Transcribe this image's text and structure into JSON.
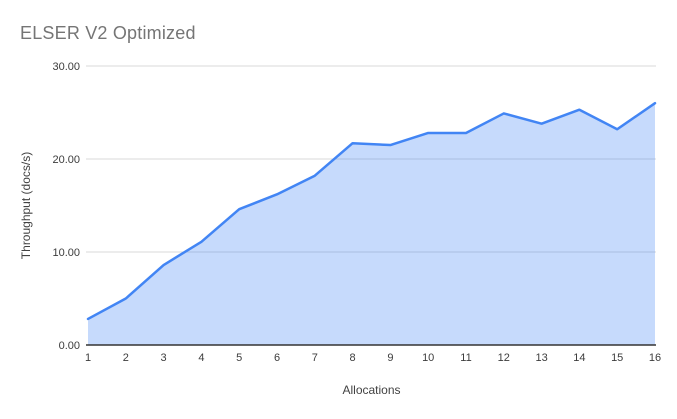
{
  "chart": {
    "title": "ELSER V2 Optimized"
  },
  "chart_data": {
    "type": "area",
    "title": "ELSER V2 Optimized",
    "xlabel": "Allocations",
    "ylabel": "Throughput (docs/s)",
    "categories": [
      "1",
      "2",
      "3",
      "4",
      "5",
      "6",
      "7",
      "8",
      "9",
      "10",
      "11",
      "12",
      "13",
      "14",
      "15",
      "16"
    ],
    "series": [
      {
        "name": "Throughput",
        "values": [
          2.8,
          5.0,
          8.6,
          11.1,
          14.6,
          16.2,
          18.2,
          21.7,
          21.5,
          22.8,
          22.8,
          24.9,
          23.8,
          25.3,
          23.2,
          26.0
        ]
      }
    ],
    "ylim": [
      0,
      30
    ],
    "yticks": [
      {
        "value": 0,
        "label": "0.00"
      },
      {
        "value": 10,
        "label": "10.00"
      },
      {
        "value": 20,
        "label": "20.00"
      },
      {
        "value": 30,
        "label": "30.00"
      }
    ],
    "grid": true,
    "legend": "none",
    "colors": {
      "line": "#4285f4",
      "fill": "rgba(66,133,244,0.30)",
      "gridline": "#d9d9d9",
      "axis_line": "#333333",
      "title_text": "#757575",
      "tick_text": "#3c3c3c",
      "axis_title_text": "#424242"
    }
  }
}
